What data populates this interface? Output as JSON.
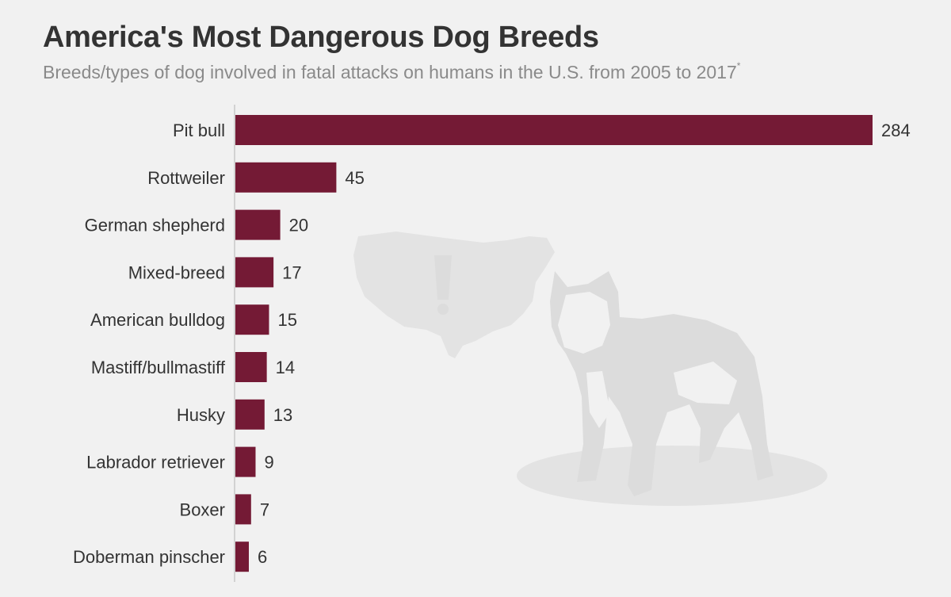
{
  "header": {
    "title": "America's Most Dangerous Dog Breeds",
    "subtitle": "Breeds/types of dog involved in fatal attacks on humans in the U.S. from 2005 to 2017",
    "subtitle_marker": "*"
  },
  "colors": {
    "bar": "#741a35",
    "background": "#f1f1f1",
    "title": "#333333",
    "subtitle": "#8a8a8a"
  },
  "decoration": {
    "icons": [
      "usa-map-icon",
      "exclamation-icon",
      "pit-bull-dog-icon"
    ]
  },
  "chart_data": {
    "type": "bar",
    "orientation": "horizontal",
    "categories": [
      "Pit bull",
      "Rottweiler",
      "German shepherd",
      "Mixed-breed",
      "American bulldog",
      "Mastiff/bullmastiff",
      "Husky",
      "Labrador retriever",
      "Boxer",
      "Doberman pinscher"
    ],
    "values": [
      284,
      45,
      20,
      17,
      15,
      14,
      13,
      9,
      7,
      6
    ],
    "data_labels": [
      "284",
      "45",
      "20",
      "17",
      "15",
      "14",
      "13",
      "9",
      "7",
      "6"
    ],
    "xlim": [
      0,
      284
    ],
    "grid": false,
    "legend": "none",
    "title": "America's Most Dangerous Dog Breeds",
    "xlabel": "",
    "ylabel": ""
  }
}
